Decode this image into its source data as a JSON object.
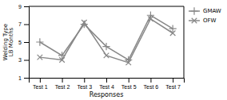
{
  "chart_data": {
    "type": "line",
    "categories": [
      "Test 1",
      "Test 2",
      "Test 3",
      "Test 4",
      "Test 5",
      "Test 6",
      "Test 7"
    ],
    "series": [
      {
        "name": "GMAW",
        "color": "#888888",
        "marker": "plus",
        "values": [
          5.0,
          3.5,
          7.0,
          4.5,
          3.0,
          8.0,
          6.5
        ]
      },
      {
        "name": "OFW",
        "color": "#888888",
        "marker": "x",
        "values": [
          3.3,
          3.0,
          7.2,
          3.5,
          2.7,
          7.6,
          6.0
        ]
      }
    ],
    "xlabel": "Responses",
    "ylabel": "Welding Type\nLB Months",
    "ylim": [
      1,
      9
    ],
    "yticks": [
      1,
      3,
      5,
      7,
      9
    ],
    "grid": false,
    "legend": "right"
  }
}
